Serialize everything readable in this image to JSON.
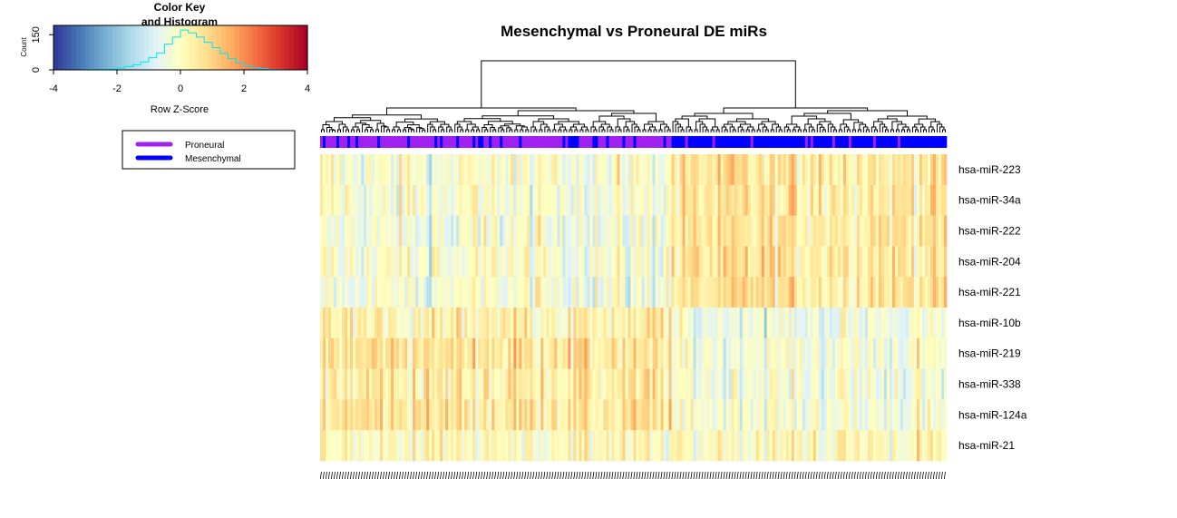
{
  "chart_data": {
    "type": "heatmap",
    "title": "Mesenchymal vs Proneural DE miRs",
    "rows": [
      "hsa-miR-223",
      "hsa-miR-34a",
      "hsa-miR-222",
      "hsa-miR-204",
      "hsa-miR-221",
      "hsa-miR-10b",
      "hsa-miR-219",
      "hsa-miR-338",
      "hsa-miR-124a",
      "hsa-miR-21"
    ],
    "n_columns": 230,
    "column_split_fraction": 0.56,
    "row_profiles": [
      {
        "row": "hsa-miR-223",
        "left_cluster_mean_z": -0.2,
        "right_cluster_mean_z": 0.5
      },
      {
        "row": "hsa-miR-34a",
        "left_cluster_mean_z": -0.2,
        "right_cluster_mean_z": 0.5
      },
      {
        "row": "hsa-miR-222",
        "left_cluster_mean_z": -0.3,
        "right_cluster_mean_z": 0.6
      },
      {
        "row": "hsa-miR-204",
        "left_cluster_mean_z": -0.2,
        "right_cluster_mean_z": 0.6
      },
      {
        "row": "hsa-miR-221",
        "left_cluster_mean_z": -0.3,
        "right_cluster_mean_z": 0.6
      },
      {
        "row": "hsa-miR-10b",
        "left_cluster_mean_z": 0.4,
        "right_cluster_mean_z": -0.4
      },
      {
        "row": "hsa-miR-219",
        "left_cluster_mean_z": 0.6,
        "right_cluster_mean_z": -0.3
      },
      {
        "row": "hsa-miR-338",
        "left_cluster_mean_z": 0.5,
        "right_cluster_mean_z": -0.3
      },
      {
        "row": "hsa-miR-124a",
        "left_cluster_mean_z": 0.6,
        "right_cluster_mean_z": -0.2
      },
      {
        "row": "hsa-miR-21",
        "left_cluster_mean_z": 0.1,
        "right_cluster_mean_z": 0.1
      }
    ],
    "color_key": {
      "title": "Color Key\nand Histogram",
      "title_lines": [
        "Color Key",
        "and Histogram"
      ],
      "xlabel": "Row Z-Score",
      "ylabel": "Count",
      "x_ticks": [
        "-4",
        "-2",
        "0",
        "2",
        "4"
      ],
      "y_ticks": [
        "0",
        "150"
      ],
      "xlim": [
        -4,
        4
      ],
      "colors": [
        "#313695",
        "#4575b4",
        "#74add1",
        "#abd9e9",
        "#e0f3f8",
        "#ffffbf",
        "#fee090",
        "#fdae61",
        "#f46d43",
        "#d73027",
        "#a50026"
      ],
      "histogram_color": "#00e5ee",
      "histogram": {
        "bin_edges": [
          -4,
          -3.75,
          -3.5,
          -3.25,
          -3,
          -2.75,
          -2.5,
          -2.25,
          -2,
          -1.75,
          -1.5,
          -1.25,
          -1,
          -0.75,
          -0.5,
          -0.25,
          0,
          0.25,
          0.5,
          0.75,
          1,
          1.25,
          1.5,
          1.75,
          2,
          2.25,
          2.5,
          2.75,
          3,
          3.25,
          3.5,
          3.75,
          4
        ],
        "counts": [
          0,
          0,
          0,
          0,
          1,
          1,
          2,
          4,
          8,
          14,
          22,
          34,
          52,
          72,
          110,
          140,
          170,
          158,
          140,
          118,
          95,
          70,
          48,
          30,
          18,
          10,
          5,
          2,
          1,
          0,
          0,
          0
        ]
      }
    },
    "legend": {
      "placement": "top-left",
      "items": [
        {
          "label": "Proneural",
          "color": "#a020f0"
        },
        {
          "label": "Mesenchymal",
          "color": "#0000ff"
        }
      ]
    },
    "colorbar_colors": {
      "Proneural": "#a020f0",
      "Mesenchymal": "#0000ff"
    }
  }
}
